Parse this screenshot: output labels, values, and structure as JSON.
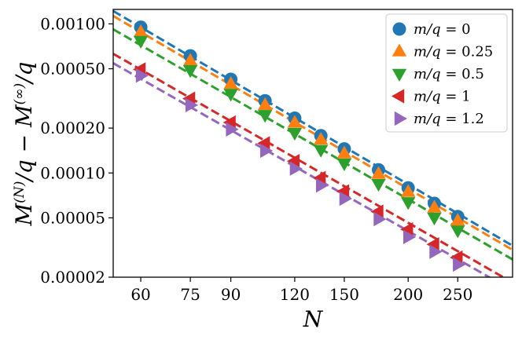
{
  "chart_data": {
    "type": "scatter",
    "title": "",
    "xlabel": "N",
    "ylabel": "M^(N)/q − M^(∞)/q",
    "xscale": "log",
    "yscale": "log",
    "xlim": [
      53,
      320
    ],
    "ylim": [
      2e-05,
      0.00125
    ],
    "xticks": [
      60,
      75,
      90,
      120,
      150,
      200,
      250
    ],
    "xtick_labels": [
      "60",
      "75",
      "90",
      "120",
      "150",
      "200",
      "250"
    ],
    "yticks": [
      2e-05,
      5e-05,
      0.0001,
      0.0002,
      0.0005,
      0.001
    ],
    "ytick_labels": [
      "0.00002",
      "0.00005",
      "0.00010",
      "0.00020",
      "0.00050",
      "0.00100"
    ],
    "x": [
      60,
      75,
      90,
      105,
      120,
      135,
      150,
      175,
      200,
      225,
      250
    ],
    "legend_position": "top-right",
    "series": [
      {
        "name": "m/q = 0",
        "label_lhs": "m/q",
        "label_rhs": "0",
        "color": "#1f77b4",
        "marker": "circle",
        "values": [
          0.00095,
          0.00061,
          0.000425,
          0.000305,
          0.000233,
          0.000178,
          0.000145,
          0.000105,
          7.95e-05,
          6.25e-05,
          5.1e-05
        ],
        "fit_start": [
          53,
          0.00122
        ],
        "fit_end": [
          320,
          3.25e-05
        ]
      },
      {
        "name": "m/q = 0.25",
        "label_lhs": "m/q",
        "label_rhs": "0.25",
        "color": "#ff7f0e",
        "marker": "triangle-up",
        "values": [
          0.00088,
          0.000565,
          0.000395,
          0.000285,
          0.000217,
          0.000167,
          0.000135,
          9.85e-05,
          7.45e-05,
          5.85e-05,
          4.78e-05
        ],
        "fit_start": [
          53,
          0.00113
        ],
        "fit_end": [
          320,
          3.05e-05
        ]
      },
      {
        "name": "m/q = 0.5",
        "label_lhs": "m/q",
        "label_rhs": "0.5",
        "color": "#2ca02c",
        "marker": "triangle-down",
        "values": [
          0.00077,
          0.00049,
          0.00034,
          0.000245,
          0.000186,
          0.000143,
          0.000116,
          8.45e-05,
          6.38e-05,
          5.02e-05,
          4.12e-05
        ],
        "fit_start": [
          53,
          0.00092
        ],
        "fit_end": [
          320,
          2.63e-05
        ]
      },
      {
        "name": "m/q = 1",
        "label_lhs": "m/q",
        "label_rhs": "1",
        "color": "#d62728",
        "marker": "triangle-left",
        "values": [
          0.000495,
          0.000315,
          0.000218,
          0.000158,
          0.00012,
          9.25e-05,
          7.52e-05,
          5.5e-05,
          4.18e-05,
          3.32e-05,
          2.71e-05
        ],
        "fit_start": [
          53,
          0.00063
        ],
        "fit_end": [
          320,
          1.84e-05
        ]
      },
      {
        "name": "m/q = 1.2",
        "label_lhs": "m/q",
        "label_rhs": "1.2",
        "color": "#9467bd",
        "marker": "triangle-right",
        "values": [
          0.00045,
          0.000285,
          0.000196,
          0.000141,
          0.000107,
          8.25e-05,
          6.72e-05,
          4.9e-05,
          3.72e-05,
          2.96e-05,
          2.43e-05
        ],
        "fit_start": [
          53,
          0.000545
        ],
        "fit_end": [
          320,
          1.63e-05
        ]
      }
    ]
  }
}
